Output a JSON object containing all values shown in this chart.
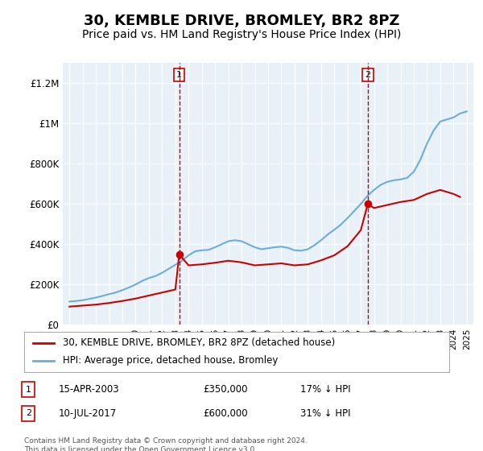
{
  "title": "30, KEMBLE DRIVE, BROMLEY, BR2 8PZ",
  "subtitle": "Price paid vs. HM Land Registry's House Price Index (HPI)",
  "title_fontsize": 13,
  "subtitle_fontsize": 10,
  "background_color": "#ffffff",
  "plot_bg_color": "#e8f0f8",
  "grid_color": "#ffffff",
  "ylim": [
    0,
    1300000
  ],
  "yticks": [
    0,
    200000,
    400000,
    600000,
    800000,
    1000000,
    1200000
  ],
  "ytick_labels": [
    "£0",
    "£200K",
    "£400K",
    "£600K",
    "£800K",
    "£1M",
    "£1.2M"
  ],
  "xlabel_fontsize": 8,
  "ylabel_fontsize": 9,
  "hpi_color": "#6baed6",
  "price_color": "#cc0000",
  "transaction1": {
    "year": 2003.29,
    "price": 350000,
    "label": "1",
    "date": "15-APR-2003",
    "hpi_diff": "17% ↓ HPI"
  },
  "transaction2": {
    "year": 2017.53,
    "price": 600000,
    "label": "2",
    "date": "10-JUL-2017",
    "hpi_diff": "31% ↓ HPI"
  },
  "legend_line1": "30, KEMBLE DRIVE, BROMLEY, BR2 8PZ (detached house)",
  "legend_line2": "HPI: Average price, detached house, Bromley",
  "footnote": "Contains HM Land Registry data © Crown copyright and database right 2024.\nThis data is licensed under the Open Government Licence v3.0.",
  "hpi_x": [
    1995,
    1995.5,
    1996,
    1996.5,
    1997,
    1997.5,
    1998,
    1998.5,
    1999,
    1999.5,
    2000,
    2000.5,
    2001,
    2001.5,
    2002,
    2002.5,
    2003,
    2003.5,
    2004,
    2004.5,
    2005,
    2005.5,
    2006,
    2006.5,
    2007,
    2007.5,
    2008,
    2008.5,
    2009,
    2009.5,
    2010,
    2010.5,
    2011,
    2011.5,
    2012,
    2012.5,
    2013,
    2013.5,
    2014,
    2014.5,
    2015,
    2015.5,
    2016,
    2016.5,
    2017,
    2017.5,
    2018,
    2018.5,
    2019,
    2019.5,
    2020,
    2020.5,
    2021,
    2021.5,
    2022,
    2022.5,
    2023,
    2023.5,
    2024,
    2024.5,
    2025
  ],
  "hpi_y": [
    115000,
    118000,
    122000,
    128000,
    135000,
    143000,
    152000,
    160000,
    172000,
    185000,
    200000,
    218000,
    232000,
    242000,
    258000,
    278000,
    298000,
    318000,
    345000,
    365000,
    370000,
    372000,
    385000,
    400000,
    415000,
    420000,
    415000,
    400000,
    385000,
    375000,
    380000,
    385000,
    388000,
    382000,
    370000,
    368000,
    375000,
    395000,
    420000,
    448000,
    472000,
    498000,
    530000,
    565000,
    600000,
    640000,
    670000,
    695000,
    710000,
    718000,
    722000,
    730000,
    760000,
    820000,
    900000,
    965000,
    1010000,
    1020000,
    1030000,
    1050000,
    1060000
  ],
  "price_x": [
    1995,
    1996,
    1997,
    1998,
    1999,
    2000,
    2001,
    2002,
    2003,
    2003.29,
    2004,
    2005,
    2006,
    2007,
    2008,
    2009,
    2010,
    2011,
    2012,
    2013,
    2014,
    2015,
    2016,
    2017,
    2017.53,
    2018,
    2019,
    2020,
    2021,
    2022,
    2023,
    2024,
    2024.5
  ],
  "price_y": [
    90000,
    95000,
    100000,
    108000,
    118000,
    130000,
    145000,
    160000,
    175000,
    350000,
    295000,
    300000,
    308000,
    318000,
    310000,
    295000,
    300000,
    305000,
    295000,
    300000,
    320000,
    345000,
    390000,
    470000,
    600000,
    580000,
    595000,
    610000,
    620000,
    650000,
    670000,
    650000,
    635000
  ]
}
